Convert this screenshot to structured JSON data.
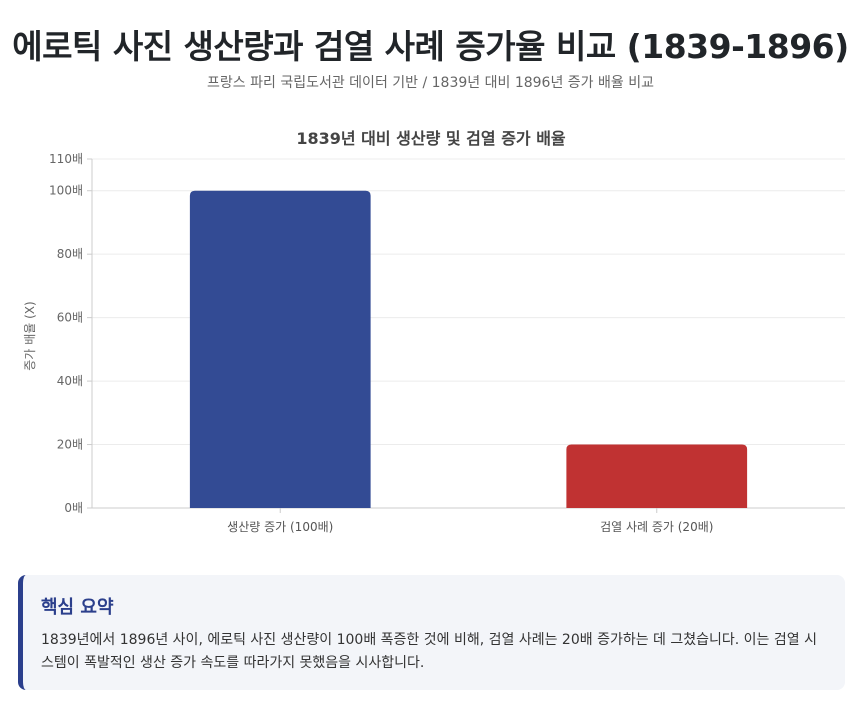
{
  "header": {
    "title": "에로틱 사진 생산량과 검열 사례 증가율 비교 (1839-1896)",
    "subtitle": "프랑스 파리 국립도서관 데이터 기반 / 1839년 대비 1896년 증가 배율 비교"
  },
  "chart_data": {
    "type": "bar",
    "title": "1839년 대비 생산량 및 검열 증가 배율",
    "ylabel": "증가 배율 (X)",
    "xlabel": "",
    "categories": [
      "생산량 증가 (100배)",
      "검열 사례 증가 (20배)"
    ],
    "values": [
      100,
      20
    ],
    "colors": [
      "#334b94",
      "#c03232"
    ],
    "ylim": [
      0,
      110
    ],
    "yticks": [
      0,
      20,
      40,
      60,
      80,
      100,
      110
    ],
    "ytick_suffix": "배",
    "grid": true
  },
  "summary": {
    "title": "핵심 요약",
    "body": "1839년에서 1896년 사이, 에로틱 사진 생산량이 100배 폭증한 것에 비해, 검열 사례는 20배 증가하는 데 그쳤습니다. 이는 검열 시스템이 폭발적인 생산 증가 속도를 따라가지 못했음을 시사합니다."
  }
}
